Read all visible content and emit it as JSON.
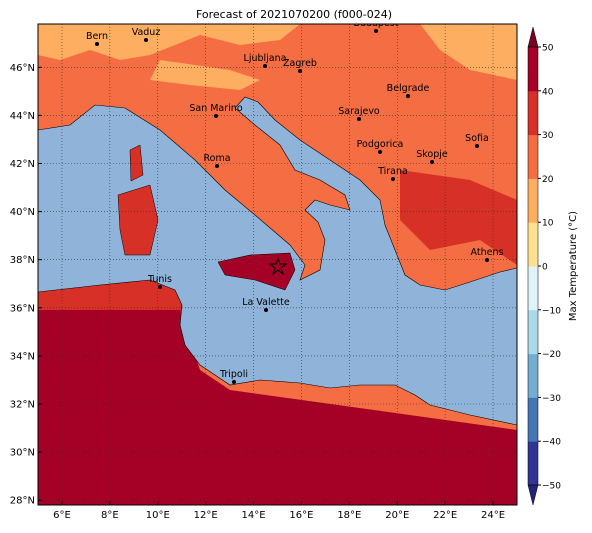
{
  "chart_data": {
    "type": "map",
    "title": "Forecast of 2021070200 (f000-024)",
    "xlim": [
      5,
      25
    ],
    "ylim": [
      27.8,
      47.8
    ],
    "xticks": [
      {
        "value": 6,
        "label": "6°E"
      },
      {
        "value": 8,
        "label": "8°E"
      },
      {
        "value": 10,
        "label": "10°E"
      },
      {
        "value": 12,
        "label": "12°E"
      },
      {
        "value": 14,
        "label": "14°E"
      },
      {
        "value": 16,
        "label": "16°E"
      },
      {
        "value": 18,
        "label": "18°E"
      },
      {
        "value": 20,
        "label": "20°E"
      },
      {
        "value": 22,
        "label": "22°E"
      },
      {
        "value": 24,
        "label": "24°E"
      }
    ],
    "yticks": [
      {
        "value": 28,
        "label": "28°N"
      },
      {
        "value": 30,
        "label": "30°N"
      },
      {
        "value": 32,
        "label": "32°N"
      },
      {
        "value": 34,
        "label": "34°N"
      },
      {
        "value": 36,
        "label": "36°N"
      },
      {
        "value": 38,
        "label": "38°N"
      },
      {
        "value": 40,
        "label": "40°N"
      },
      {
        "value": 42,
        "label": "42°N"
      },
      {
        "value": 44,
        "label": "44°N"
      },
      {
        "value": 46,
        "label": "46°N"
      }
    ],
    "grid": true,
    "cities": [
      "Bern",
      "Vaduz",
      "Budapest",
      "Ljubljana",
      "Zagreb",
      "Belgrade",
      "San Marino",
      "Sarajevo",
      "Sofia",
      "Podgorica",
      "Skopje",
      "Roma",
      "Tirana",
      "Athens",
      "Tunis",
      "La Valette",
      "Tripoli"
    ],
    "colorbar": {
      "label": "Max Temperature (°C)",
      "lim": [
        -50,
        50
      ],
      "ticks": [
        {
          "value": -50,
          "label": "−50"
        },
        {
          "value": -40,
          "label": "−40"
        },
        {
          "value": -30,
          "label": "−30"
        },
        {
          "value": -20,
          "label": "−20"
        },
        {
          "value": -10,
          "label": "−10"
        },
        0,
        10,
        20,
        30,
        40,
        50
      ],
      "colors": [
        "#313695",
        "#4575b4",
        "#74add1",
        "#abd9e9",
        "#e0f3f8",
        "#fee090",
        "#fdae61",
        "#f46d43",
        "#d73027",
        "#a50026"
      ],
      "under_color": "#23237a",
      "over_color": "#7a0020"
    }
  }
}
